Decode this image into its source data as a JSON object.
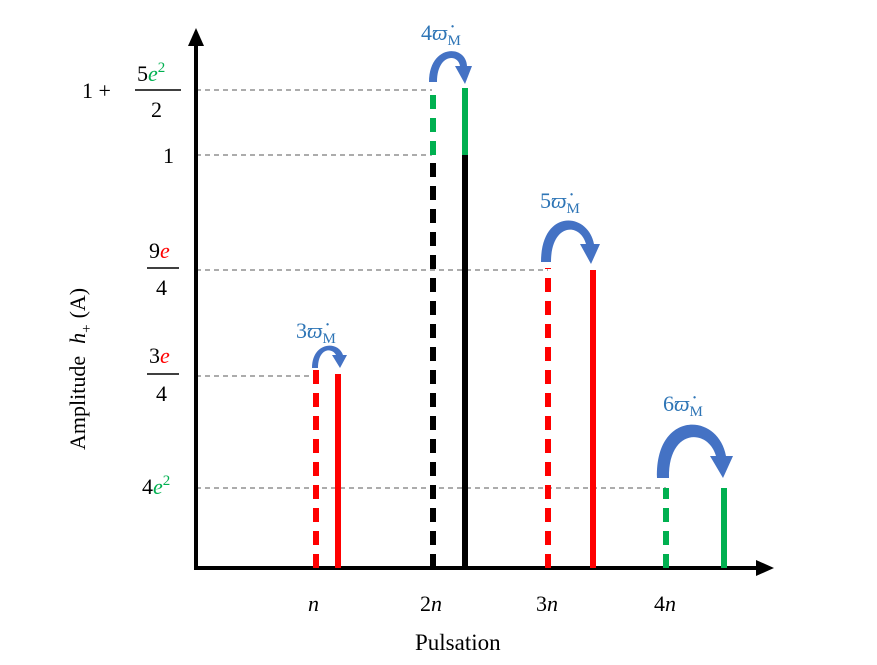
{
  "axes": {
    "x_label": "Pulsation",
    "y_label_text": "Amplitude",
    "y_label_math": "h",
    "y_label_sub": "+",
    "y_label_arg": "(A)"
  },
  "x_ticks": [
    {
      "coef": "",
      "sym": "n"
    },
    {
      "coef": "2",
      "sym": "n"
    },
    {
      "coef": "3",
      "sym": "n"
    },
    {
      "coef": "4",
      "sym": "n"
    }
  ],
  "y_ticks": {
    "top": {
      "prefix": "1 +",
      "num_coef": "5",
      "num_var": "e",
      "num_exp": "2",
      "den": "2"
    },
    "one": "1",
    "nine_e": {
      "num_coef": "9",
      "num_var": "e",
      "den": "4"
    },
    "three_e": {
      "num_coef": "3",
      "num_var": "e",
      "den": "4"
    },
    "four_e2": {
      "coef": "4",
      "var": "e",
      "exp": "2"
    }
  },
  "arrow_labels": [
    {
      "coef": "3",
      "sym": "ϖ̇",
      "sub": "M"
    },
    {
      "coef": "4",
      "sym": "ϖ̇",
      "sub": "M"
    },
    {
      "coef": "5",
      "sym": "ϖ̇",
      "sub": "M"
    },
    {
      "coef": "6",
      "sym": "ϖ̇",
      "sub": "M"
    }
  ],
  "colors": {
    "axis": "#000000",
    "red": "#ff0000",
    "green": "#00b050",
    "black": "#000000",
    "arrow": "#4472c4",
    "label_blue": "#2e75b6",
    "guide": "#595959"
  }
}
